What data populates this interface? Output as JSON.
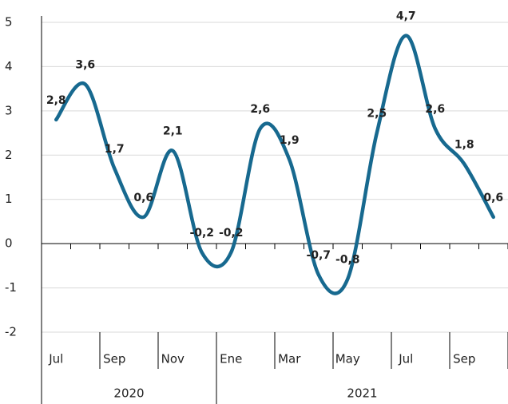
{
  "chart_data": {
    "type": "line",
    "categories": [
      "Jul",
      null,
      "Sep",
      null,
      "Nov",
      null,
      "Ene",
      null,
      "Mar",
      null,
      "May",
      null,
      "Jul",
      null,
      "Sep",
      null
    ],
    "groups": [
      {
        "label": "2020",
        "span": 6
      },
      {
        "label": "2021",
        "span": 10
      }
    ],
    "series": [
      {
        "name": null,
        "color": "#17698f",
        "values": [
          2.8,
          3.6,
          1.7,
          0.6,
          2.1,
          -0.2,
          -0.2,
          2.6,
          1.9,
          -0.7,
          -0.8,
          2.5,
          4.7,
          2.6,
          1.8,
          0.6
        ],
        "value_labels": [
          "2,8",
          "3,6",
          "1,7",
          "0,6",
          "2,1",
          "-0,2",
          "-0,2",
          "2,6",
          "1,9",
          "-0,7",
          "-0,8",
          "2,5",
          "4,7",
          "2,6",
          "1,8",
          "0,6"
        ]
      }
    ],
    "ylim": [
      -2,
      5
    ],
    "yticks": [
      -2,
      -1,
      0,
      1,
      2,
      3,
      4,
      5
    ],
    "grid": true
  }
}
